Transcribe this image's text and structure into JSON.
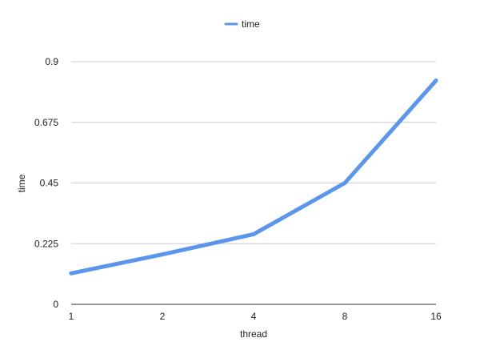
{
  "chart_data": {
    "type": "line",
    "title": "",
    "xlabel": "thread",
    "ylabel": "time",
    "categories": [
      "1",
      "2",
      "4",
      "8",
      "16"
    ],
    "series": [
      {
        "name": "time",
        "color": "#5a95ee",
        "values": [
          0.115,
          0.185,
          0.26,
          0.45,
          0.83
        ]
      }
    ],
    "ylim": [
      0,
      0.9
    ],
    "yticks": [
      "0",
      "0.225",
      "0.45",
      "0.675",
      "0.9"
    ],
    "ytick_values": [
      0,
      0.225,
      0.45,
      0.675,
      0.9
    ],
    "grid": true,
    "legend_position": "top-center"
  }
}
